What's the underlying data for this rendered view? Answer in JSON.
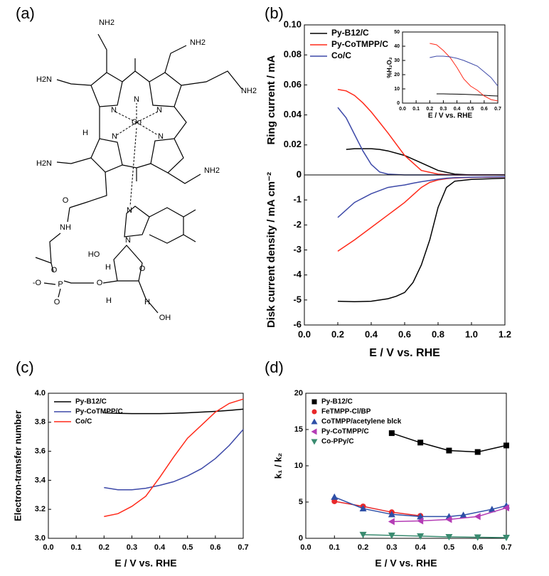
{
  "panel_labels": [
    "(a)",
    "(b)",
    "(c)",
    "(d)"
  ],
  "structure": {
    "labels": [
      "NH2",
      "NH2",
      "H2N",
      "NH2",
      "N",
      "N",
      "N",
      "Co",
      "N",
      "N",
      "H",
      "H2N",
      "NH2",
      "N",
      "N",
      "O",
      "NH",
      "HO",
      "H",
      "O",
      "O",
      "-O",
      "P",
      "O",
      "O",
      "H",
      "H",
      "OH"
    ]
  },
  "chart_data": [
    {
      "type": "line",
      "ylabel": "Ring current / mA",
      "legend": "upper left",
      "xlim": [
        0,
        1.2
      ],
      "ylim": [
        0,
        0.1
      ],
      "yticks": [
        0,
        0.02,
        0.04,
        0.06,
        0.08,
        {
          "value": 0.1,
          "label": "0.10"
        }
      ],
      "x": [
        0.2,
        0.25,
        0.3,
        0.35,
        0.4,
        0.45,
        0.5,
        0.6,
        0.7,
        0.8,
        0.9,
        1.0,
        1.2
      ],
      "series": [
        {
          "name": "Py-B12/C",
          "color": "#000000",
          "values": [
            null,
            0.017,
            0.0175,
            0.0175,
            0.0175,
            0.017,
            0.016,
            0.013,
            0.008,
            0.003,
            0.0005,
            0,
            0
          ]
        },
        {
          "name": "Py-CoTMPP/C",
          "color": "#ff2a1a",
          "values": [
            0.057,
            0.056,
            0.053,
            0.048,
            0.042,
            0.035,
            0.028,
            0.013,
            0.003,
            0.0005,
            0,
            0,
            0
          ]
        },
        {
          "name": "Co/C",
          "color": "#3d49a8",
          "values": [
            0.045,
            0.038,
            0.027,
            0.016,
            0.007,
            0.002,
            0.0005,
            0,
            0,
            0,
            0,
            0,
            0
          ]
        }
      ]
    },
    {
      "type": "line",
      "ylabel": "Disk current density / mA cm⁻²",
      "xlabel": "E / V vs. RHE",
      "xlim": [
        0,
        1.2
      ],
      "ylim": [
        -6,
        0
      ],
      "xticks": [
        {
          "value": 0,
          "label": "0.0"
        },
        0.2,
        0.4,
        0.6,
        0.8,
        {
          "value": 1,
          "label": "1.0"
        },
        1.2
      ],
      "yticks": [
        0,
        -1,
        -2,
        -3,
        -4,
        -5,
        -6
      ],
      "x": [
        0.2,
        0.3,
        0.4,
        0.5,
        0.55,
        0.6,
        0.65,
        0.7,
        0.75,
        0.8,
        0.85,
        0.9,
        1.0,
        1.2
      ],
      "series": [
        {
          "name": "Py-B12/C",
          "color": "#000000",
          "values": [
            -5.05,
            -5.07,
            -5.05,
            -4.95,
            -4.85,
            -4.7,
            -4.3,
            -3.6,
            -2.6,
            -1.3,
            -0.5,
            -0.25,
            -0.18,
            -0.13
          ]
        },
        {
          "name": "Py-CoTMPP/C",
          "color": "#ff2a1a",
          "values": [
            -3.05,
            -2.6,
            -2.1,
            -1.6,
            -1.35,
            -1.1,
            -0.8,
            -0.5,
            -0.3,
            -0.2,
            -0.15,
            -0.12,
            -0.1,
            -0.08
          ]
        },
        {
          "name": "Co/C",
          "color": "#3d49a8",
          "values": [
            -1.7,
            -1.1,
            -0.75,
            -0.5,
            -0.45,
            -0.4,
            -0.33,
            -0.27,
            -0.22,
            -0.17,
            -0.13,
            -0.11,
            -0.09,
            -0.07
          ]
        }
      ]
    },
    {
      "type": "line",
      "ylabel": "%H₂O₂",
      "xlabel": "E / V vs. RHE",
      "xlim": [
        0,
        0.7
      ],
      "ylim": [
        0,
        50
      ],
      "xticks": [
        {
          "value": 0,
          "label": "0.0"
        },
        0.1,
        0.2,
        0.3,
        0.4,
        0.5,
        0.6,
        0.7
      ],
      "yticks": [
        0,
        10,
        20,
        30,
        40,
        50
      ],
      "x": [
        0.2,
        0.25,
        0.3,
        0.35,
        0.4,
        0.45,
        0.5,
        0.55,
        0.6,
        0.65,
        0.7
      ],
      "series": [
        {
          "name": "Py-B12/C",
          "color": "#000000",
          "values": [
            null,
            6.5,
            6.5,
            6.4,
            6.3,
            6.2,
            6,
            5.8,
            5.5,
            5.2,
            5
          ]
        },
        {
          "name": "Py-CoTMPP/C",
          "color": "#ff2a1a",
          "values": [
            42,
            41,
            37,
            32,
            25,
            17,
            12,
            9,
            5,
            2.5,
            1.5
          ]
        },
        {
          "name": "Co/C",
          "color": "#3d49a8",
          "values": [
            32,
            33,
            33,
            32.5,
            31.5,
            30,
            28,
            26,
            22,
            18,
            12
          ]
        }
      ]
    },
    {
      "type": "line",
      "ylabel": "Electron-transfer number",
      "xlabel": "E / V vs. RHE",
      "legend": "upper left",
      "xlim": [
        0,
        0.7
      ],
      "ylim": [
        3,
        4
      ],
      "xticks": [
        {
          "value": 0,
          "label": "0.0"
        },
        0.1,
        0.2,
        0.3,
        0.4,
        0.5,
        0.6,
        0.7
      ],
      "yticks": [
        {
          "value": 3,
          "label": "3.0"
        },
        3.2,
        3.4,
        3.6,
        3.8,
        {
          "value": 4,
          "label": "4.0"
        }
      ],
      "x": [
        0.2,
        0.25,
        0.3,
        0.35,
        0.4,
        0.45,
        0.5,
        0.55,
        0.6,
        0.65,
        0.7
      ],
      "series": [
        {
          "name": "Py-B12/C",
          "color": "#000000",
          "values": [
            3.865,
            3.862,
            3.86,
            3.86,
            3.86,
            3.862,
            3.865,
            3.87,
            3.875,
            3.882,
            3.89
          ]
        },
        {
          "name": "Py-CoTMPP/C",
          "color": "#3d49a8",
          "values": [
            3.35,
            3.335,
            3.335,
            3.345,
            3.365,
            3.39,
            3.43,
            3.48,
            3.55,
            3.64,
            3.75
          ]
        },
        {
          "name": "Co/C",
          "color": "#ff2a1a",
          "values": [
            3.15,
            3.17,
            3.22,
            3.29,
            3.42,
            3.56,
            3.69,
            3.78,
            3.87,
            3.93,
            3.96
          ]
        }
      ]
    },
    {
      "type": "scatter",
      "ylabel": "k₁ / k₂",
      "xlabel": "E / V vs. RHE",
      "legend": "upper left",
      "xlim": [
        0,
        0.7
      ],
      "ylim": [
        0,
        20
      ],
      "xticks": [
        {
          "value": 0,
          "label": "0.0"
        },
        0.1,
        0.2,
        0.3,
        0.4,
        0.5,
        0.6,
        0.7
      ],
      "yticks": [
        0,
        5,
        10,
        15,
        20
      ],
      "series": [
        {
          "name": "Py-B12/C",
          "color": "#000000",
          "marker": "square",
          "x": [
            0.3,
            0.4,
            0.5,
            0.6,
            0.7
          ],
          "values": [
            14.5,
            13.2,
            12.1,
            11.9,
            12.8
          ]
        },
        {
          "name": "FeTMPP-Cl/BP",
          "color": "#e8282a",
          "marker": "circle",
          "x": [
            0.1,
            0.2,
            0.3,
            0.4
          ],
          "values": [
            5.1,
            4.4,
            3.6,
            3.1
          ]
        },
        {
          "name": "CoTMPP/acetylene blck",
          "color": "#2e4fa7",
          "marker": "triangle-up",
          "x": [
            0.1,
            0.2,
            0.3,
            0.4,
            0.5,
            0.55,
            0.65,
            0.7
          ],
          "values": [
            5.7,
            4.1,
            3.3,
            3.0,
            3.0,
            3.2,
            4.0,
            4.5
          ]
        },
        {
          "name": "Py-CoTMPP/C",
          "color": "#b43cb5",
          "marker": "triangle-left",
          "x": [
            0.3,
            0.4,
            0.5,
            0.6,
            0.7
          ],
          "values": [
            2.3,
            2.4,
            2.6,
            3.0,
            4.2
          ]
        },
        {
          "name": "Co-PPy/C",
          "color": "#3a8b70",
          "marker": "triangle-down",
          "x": [
            0.2,
            0.3,
            0.4,
            0.5,
            0.6,
            0.7
          ],
          "values": [
            0.5,
            0.4,
            0.3,
            0.2,
            0.15,
            0.1
          ]
        }
      ]
    }
  ]
}
